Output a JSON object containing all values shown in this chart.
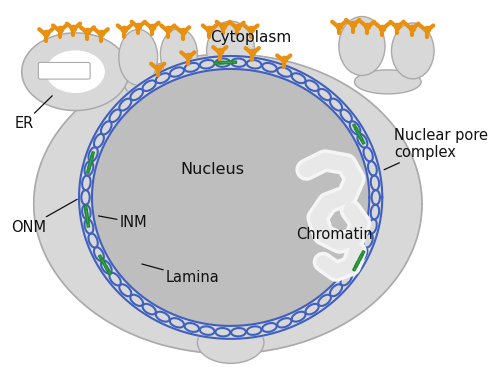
{
  "bg_color": "#ffffff",
  "cell_color": "#d8d8d8",
  "cell_edge": "#aaaaaa",
  "nucleus_color": "#bebebe",
  "nucleus_edge": "#aaaaaa",
  "envelope_blue": "#4060c0",
  "envelope_fill": "#d8d8d8",
  "pore_color": "#33aa44",
  "pore_edge": "#228833",
  "ribosome_color": "#e89010",
  "chromatin_color": "#e8e8e8",
  "chromatin_edge": "#cccccc",
  "text_color": "#111111",
  "label_cytoplasm": "Cytoplasm",
  "label_nucleus": "Nucleus",
  "label_er": "ER",
  "label_onm": "ONM",
  "label_inm": "INM",
  "label_lamina": "Lamina",
  "label_chromatin": "Chromatin",
  "label_pore": "Nuclear pore\ncomplex",
  "fig_width": 5.0,
  "fig_height": 3.81,
  "dpi": 100
}
